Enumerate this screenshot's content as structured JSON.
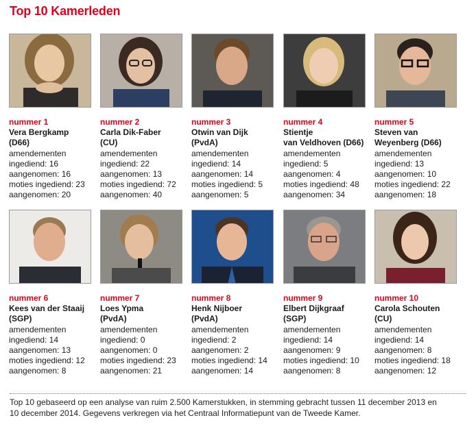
{
  "title": "Top 10 Kamerleden",
  "members": [
    {
      "rank": "nummer 1",
      "name_lines": [
        "Vera Bergkamp",
        "(D66)"
      ],
      "amend_label": "amendementen",
      "amend_submitted": "ingediend: 16",
      "amend_adopted": "aangenomen: 16",
      "motions_submitted": "moties ingediend: 23",
      "motions_adopted": "aangenomen: 20"
    },
    {
      "rank": "nummer 2",
      "name_lines": [
        "Carla Dik-Faber",
        "(CU)"
      ],
      "amend_label": "amendementen",
      "amend_submitted": "ingediend: 22",
      "amend_adopted": "aangenomen: 13",
      "motions_submitted": "moties ingediend: 72",
      "motions_adopted": "aangenomen: 40"
    },
    {
      "rank": "nummer 3",
      "name_lines": [
        "Otwin van Dijk",
        "(PvdA)"
      ],
      "amend_label": "amendementen",
      "amend_submitted": "ingediend: 14",
      "amend_adopted": "aangenomen: 14",
      "motions_submitted": "moties ingediend: 5",
      "motions_adopted": "aangenomen: 5"
    },
    {
      "rank": "nummer 4",
      "name_lines": [
        "Stientje",
        "van Veldhoven (D66)"
      ],
      "amend_label": "amendementen",
      "amend_submitted": "ingediend: 5",
      "amend_adopted": "aangenomen: 4",
      "motions_submitted": "moties ingediend: 48",
      "motions_adopted": "aangenomen: 34"
    },
    {
      "rank": "nummer 5",
      "name_lines": [
        "Steven van",
        "Weyenberg (D66)"
      ],
      "amend_label": "amendementen",
      "amend_submitted": "ingediend: 13",
      "amend_adopted": "aangenomen: 10",
      "motions_submitted": "moties ingediend: 22",
      "motions_adopted": "aangenomen: 18"
    },
    {
      "rank": "nummer 6",
      "name_lines": [
        "Kees van der Staaij",
        "(SGP)"
      ],
      "amend_label": "amendementen",
      "amend_submitted": "ingediend: 14",
      "amend_adopted": "aangenomen: 13",
      "motions_submitted": "moties ingediend: 12",
      "motions_adopted": "aangenomen: 8"
    },
    {
      "rank": "nummer 7",
      "name_lines": [
        "Loes Ypma",
        "(PvdA)"
      ],
      "amend_label": "amendementen",
      "amend_submitted": "ingediend: 0",
      "amend_adopted": "aangenomen: 0",
      "motions_submitted": "moties ingediend: 23",
      "motions_adopted": "aangenomen: 21"
    },
    {
      "rank": "nummer 8",
      "name_lines": [
        "Henk Nijboer",
        "(PvdA)"
      ],
      "amend_label": "amendementen",
      "amend_submitted": "ingediend: 2",
      "amend_adopted": "aangenomen: 2",
      "motions_submitted": "moties ingediend: 14",
      "motions_adopted": "aangenomen: 14"
    },
    {
      "rank": "nummer 9",
      "name_lines": [
        "Elbert Dijkgraaf",
        "(SGP)"
      ],
      "amend_label": "amendementen",
      "amend_submitted": "ingediend: 14",
      "amend_adopted": "aangenomen: 9",
      "motions_submitted": "moties ingediend: 10",
      "motions_adopted": "aangenomen: 8"
    },
    {
      "rank": "nummer 10",
      "name_lines": [
        "Carola Schouten",
        "(CU)"
      ],
      "amend_label": "amendementen",
      "amend_submitted": "ingediend: 14",
      "amend_adopted": "aangenomen: 8",
      "motions_submitted": "moties ingediend: 18",
      "motions_adopted": "aangenomen: 12"
    }
  ],
  "footnote": {
    "line1": "Top 10 gebaseerd op een analyse van ruim 2.500 Kamerstukken, in stemming gebracht tussen 11 december 2013 en",
    "line2": "10 december 2014. Gegevens verkregen via het Centraal Informatiepunt van de Tweede Kamer."
  },
  "colors": {
    "accent": "#e2001a",
    "text": "#1a1a1a"
  }
}
